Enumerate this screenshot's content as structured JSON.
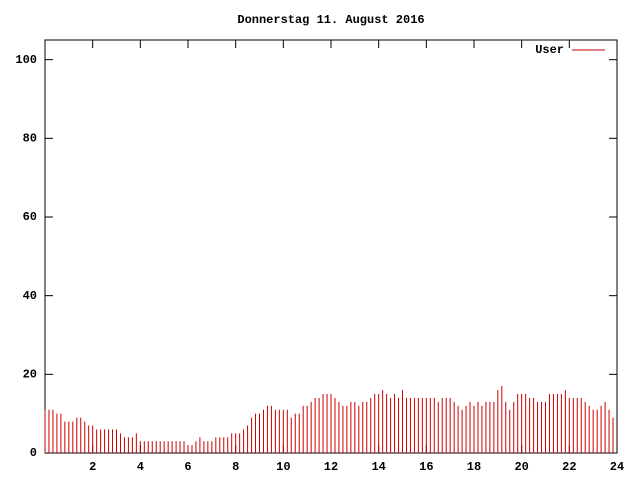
{
  "chart_data": {
    "type": "impulses",
    "title": "Donnerstag 11. August 2016",
    "x": [
      0,
      0.167,
      0.333,
      0.5,
      0.667,
      0.833,
      1,
      1.167,
      1.333,
      1.5,
      1.667,
      1.833,
      2,
      2.167,
      2.333,
      2.5,
      2.667,
      2.833,
      3,
      3.167,
      3.333,
      3.5,
      3.667,
      3.833,
      4,
      4.167,
      4.333,
      4.5,
      4.667,
      4.833,
      5,
      5.167,
      5.333,
      5.5,
      5.667,
      5.833,
      6,
      6.167,
      6.333,
      6.5,
      6.667,
      6.833,
      7,
      7.167,
      7.333,
      7.5,
      7.667,
      7.833,
      8,
      8.167,
      8.333,
      8.5,
      8.667,
      8.833,
      9,
      9.167,
      9.333,
      9.5,
      9.667,
      9.833,
      10,
      10.167,
      10.333,
      10.5,
      10.667,
      10.833,
      11,
      11.167,
      11.333,
      11.5,
      11.667,
      11.833,
      12,
      12.167,
      12.333,
      12.5,
      12.667,
      12.833,
      13,
      13.167,
      13.333,
      13.5,
      13.667,
      13.833,
      14,
      14.167,
      14.333,
      14.5,
      14.667,
      14.833,
      15,
      15.167,
      15.333,
      15.5,
      15.667,
      15.833,
      16,
      16.167,
      16.333,
      16.5,
      16.667,
      16.833,
      17,
      17.167,
      17.333,
      17.5,
      17.667,
      17.833,
      18,
      18.167,
      18.333,
      18.5,
      18.667,
      18.833,
      19,
      19.167,
      19.333,
      19.5,
      19.667,
      19.833,
      20,
      20.167,
      20.333,
      20.5,
      20.667,
      20.833,
      21,
      21.167,
      21.333,
      21.5,
      21.667,
      21.833,
      22,
      22.167,
      22.333,
      22.5,
      22.667,
      22.833,
      23,
      23.167,
      23.333,
      23.5,
      23.667,
      23.833
    ],
    "series": [
      {
        "name": "User",
        "color": "#cc0000",
        "values": [
          11,
          11,
          11,
          10,
          10,
          8,
          8,
          8,
          9,
          9,
          8,
          7,
          7,
          6,
          6,
          6,
          6,
          6,
          6,
          5,
          4,
          4,
          4,
          5,
          3,
          3,
          3,
          3,
          3,
          3,
          3,
          3,
          3,
          3,
          3,
          3,
          2,
          2,
          3,
          4,
          3,
          3,
          3,
          4,
          4,
          4,
          4,
          5,
          5,
          5,
          6,
          7,
          9,
          10,
          10,
          11,
          12,
          12,
          11,
          11,
          11,
          11,
          9,
          10,
          10,
          12,
          12,
          13,
          14,
          14,
          15,
          15,
          15,
          14,
          13,
          12,
          12,
          13,
          13,
          12,
          13,
          13,
          14,
          15,
          15,
          16,
          15,
          14,
          15,
          14,
          16,
          14,
          14,
          14,
          14,
          14,
          14,
          14,
          14,
          13,
          14,
          14,
          14,
          13,
          12,
          11,
          12,
          13,
          12,
          13,
          12,
          13,
          13,
          13,
          16,
          17,
          13,
          11,
          13,
          15,
          15,
          15,
          14,
          14,
          13,
          13,
          13,
          15,
          15,
          15,
          15,
          16,
          14,
          14,
          14,
          14,
          13,
          12,
          11,
          11,
          12,
          13,
          11,
          9
        ]
      }
    ],
    "xlim": [
      0,
      24
    ],
    "xticks": [
      2,
      4,
      6,
      8,
      10,
      12,
      14,
      16,
      18,
      20,
      22,
      24
    ],
    "ylim": [
      0,
      105
    ],
    "yticks": [
      0,
      20,
      40,
      60,
      80,
      100
    ],
    "legend": "top-right"
  }
}
